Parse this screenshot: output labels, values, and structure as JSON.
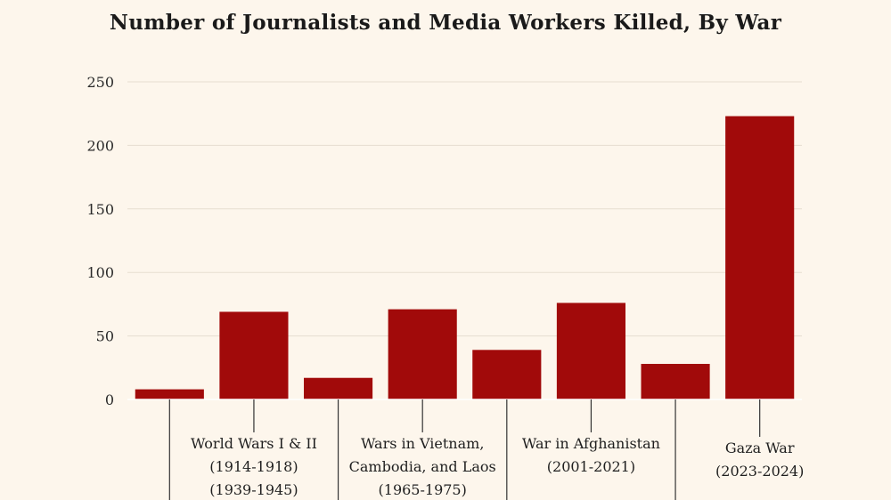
{
  "chart_data": {
    "type": "bar",
    "title": "Number of Journalists and Media Workers Killed, By War",
    "xlabel": "",
    "ylabel": "",
    "ylim": [
      0,
      250
    ],
    "yticks": [
      0,
      50,
      100,
      150,
      200,
      250
    ],
    "grid": true,
    "bar_color": "#a10a0a",
    "values": [
      8,
      69,
      17,
      71,
      39,
      76,
      28,
      223
    ],
    "category_labels": [
      {
        "bar_index": 0,
        "lines": []
      },
      {
        "bar_index": 1,
        "lines": [
          "World Wars I & II",
          "(1914-1918)",
          "(1939-1945)"
        ]
      },
      {
        "bar_index": 2,
        "lines": []
      },
      {
        "bar_index": 3,
        "lines": [
          "Wars in Vietnam,",
          "Cambodia, and Laos",
          "(1965-1975)"
        ]
      },
      {
        "bar_index": 4,
        "lines": []
      },
      {
        "bar_index": 5,
        "lines": [
          "War in Afghanistan",
          "(2001-2021)"
        ]
      },
      {
        "bar_index": 6,
        "lines": []
      },
      {
        "bar_index": 7,
        "lines": [
          "Gaza War",
          "(2023-2024)"
        ]
      }
    ]
  }
}
